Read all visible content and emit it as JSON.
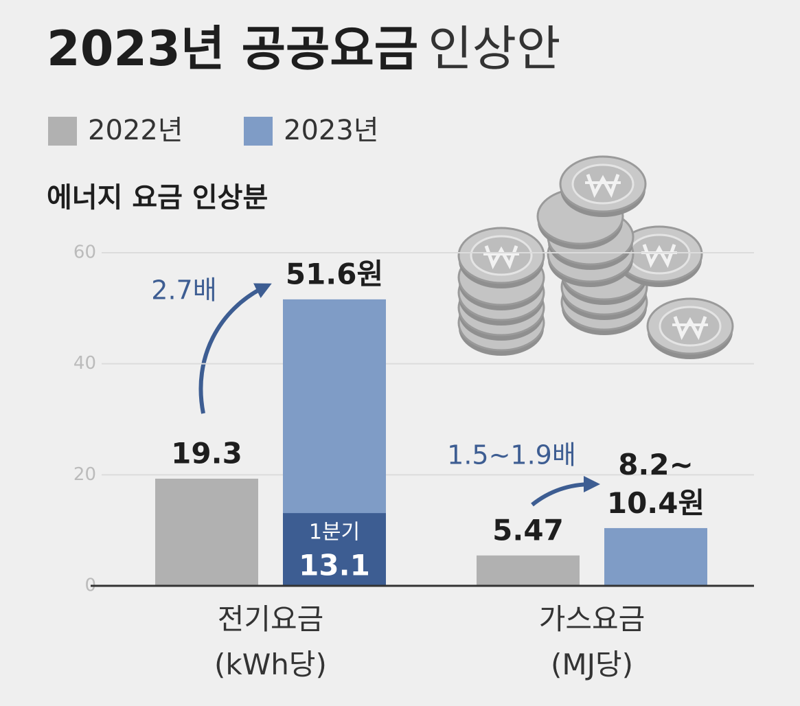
{
  "chart_data": {
    "type": "bar",
    "title_parts": [
      "2023년 공공요금",
      "인상안"
    ],
    "subtitle": "에너지 요금 인상분",
    "categories": [
      "전기요금\n(kWh당)",
      "가스요금\n(MJ당)"
    ],
    "series": [
      {
        "name": "2022년",
        "color": "#b1b1b1",
        "values": [
          19.3,
          5.47
        ]
      },
      {
        "name": "2023년",
        "color": "#7f9cc6",
        "values": [
          51.6,
          10.4
        ],
        "value_labels": [
          "51.6원",
          "8.2~\n10.4원"
        ]
      }
    ],
    "overlay": {
      "name": "1분기",
      "color": "#3d5d92",
      "series": 1,
      "category": 0,
      "value": 13.1
    },
    "annotations": [
      "2.7배",
      "1.5~1.9배"
    ],
    "annotation_color": "#3d5d92",
    "ylim": [
      0,
      60
    ],
    "yticks": [
      0,
      20,
      40,
      60
    ],
    "grid": true
  }
}
